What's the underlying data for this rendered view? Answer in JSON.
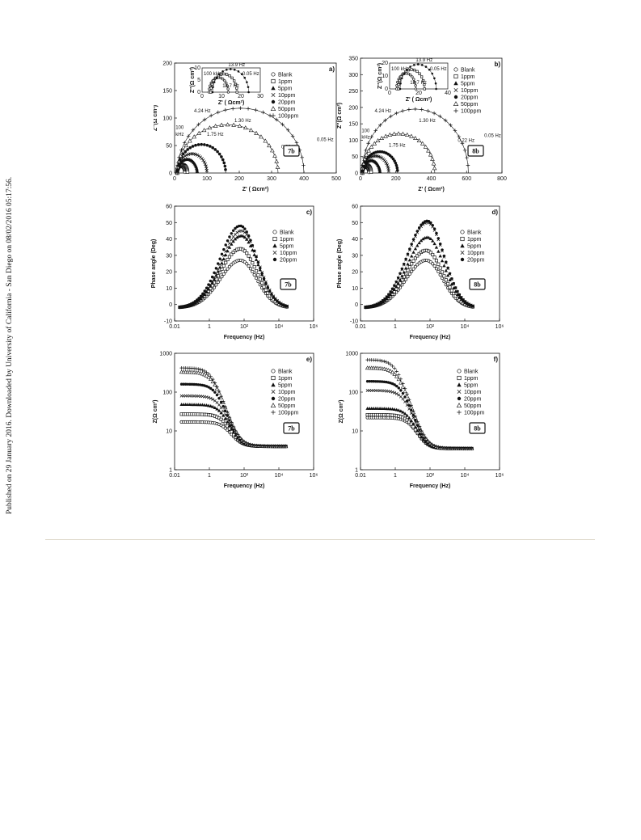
{
  "side_note": "Published on 29 January 2016. Downloaded by University of California - San Diego on 08/02/2016 05:17:56.",
  "chart_data": [
    {
      "id": "a",
      "type": "scatter",
      "label": "a)",
      "tag": "7b",
      "xlabel": "Z' ( Ωcm²)",
      "ylabel": "Z''(Ω cm²)",
      "xlim": [
        0,
        500
      ],
      "ylim": [
        0,
        200
      ],
      "xticks": [
        0,
        100,
        200,
        300,
        400,
        500
      ],
      "yticks": [
        0,
        50,
        100,
        150,
        200
      ],
      "tick_labels_x": [
        "0",
        "100",
        "200",
        "300",
        "400",
        "500"
      ],
      "tick_labels_y": [
        "0",
        "50",
        "100",
        "150",
        "200"
      ],
      "legend": [
        "Blank",
        "1ppm",
        "5ppm",
        "10ppm",
        "20ppm",
        "50ppm",
        "100ppm"
      ],
      "series": [
        {
          "name": "Blank",
          "marker": "circle-open",
          "arc": {
            "r0": 8,
            "r1": 32,
            "hmax": 12
          }
        },
        {
          "name": "1ppm",
          "marker": "square-open",
          "arc": {
            "r0": 8,
            "r1": 40,
            "hmax": 15
          }
        },
        {
          "name": "5ppm",
          "marker": "triangle-filled",
          "arc": {
            "r0": 8,
            "r1": 70,
            "hmax": 25
          }
        },
        {
          "name": "10ppm",
          "marker": "x",
          "arc": {
            "r0": 8,
            "r1": 100,
            "hmax": 35
          }
        },
        {
          "name": "20ppm",
          "marker": "circle-filled",
          "arc": {
            "r0": 8,
            "r1": 158,
            "hmax": 52
          }
        },
        {
          "name": "50ppm",
          "marker": "triangle-open",
          "arc": {
            "r0": 8,
            "r1": 320,
            "hmax": 88
          }
        },
        {
          "name": "100ppm",
          "marker": "plus",
          "arc": {
            "r0": 8,
            "r1": 400,
            "hmax": 118
          }
        }
      ],
      "annotations": [
        {
          "text": "4.24 Hz",
          "x": 60,
          "y": 110
        },
        {
          "text": "100",
          "x": 3,
          "y": 80
        },
        {
          "text": "kHz",
          "x": 3,
          "y": 68
        },
        {
          "text": "1.75 Hz",
          "x": 100,
          "y": 68
        },
        {
          "text": "1.30 Hz",
          "x": 185,
          "y": 93
        },
        {
          "text": "0.22 Hz",
          "x": 330,
          "y": 45
        },
        {
          "text": "0.05 Hz",
          "x": 440,
          "y": 58
        }
      ],
      "inset": {
        "xlim": [
          0,
          30
        ],
        "ylim": [
          0,
          10
        ],
        "xticks": [
          0,
          10,
          20,
          30
        ],
        "yticks": [
          0,
          5,
          10
        ],
        "xlabel": "Z' ( Ωcm²)",
        "ylabel": "Z''(Ω cm²)",
        "annotations": [
          "13.9 Hz",
          "100 kHz",
          "0.05 Hz",
          "18.7 Hz"
        ]
      }
    },
    {
      "id": "b",
      "type": "scatter",
      "label": "b)",
      "tag": "8b",
      "xlabel": "Z' ( Ωcm²)",
      "ylabel": "Z''(Ω cm²)",
      "xlim": [
        0,
        800
      ],
      "ylim": [
        0,
        350
      ],
      "xticks": [
        0,
        200,
        400,
        600,
        800
      ],
      "yticks": [
        0,
        50,
        100,
        150,
        200,
        250,
        300,
        350
      ],
      "tick_labels_x": [
        "0",
        "200",
        "400",
        "600",
        "800"
      ],
      "tick_labels_y": [
        "0",
        "50",
        "100",
        "150",
        "200",
        "250",
        "300",
        "350"
      ],
      "legend": [
        "Blank",
        "1ppm",
        "5ppm",
        "10ppm",
        "20ppm",
        "50ppm",
        "100ppm"
      ],
      "series": [
        {
          "name": "Blank",
          "marker": "circle-open",
          "arc": {
            "r0": 10,
            "r1": 48,
            "hmax": 18
          }
        },
        {
          "name": "1ppm",
          "marker": "square-open",
          "arc": {
            "r0": 10,
            "r1": 60,
            "hmax": 24
          }
        },
        {
          "name": "5ppm",
          "marker": "triangle-filled",
          "arc": {
            "r0": 10,
            "r1": 110,
            "hmax": 38
          }
        },
        {
          "name": "10ppm",
          "marker": "x",
          "arc": {
            "r0": 10,
            "r1": 160,
            "hmax": 52
          }
        },
        {
          "name": "20ppm",
          "marker": "circle-filled",
          "arc": {
            "r0": 10,
            "r1": 210,
            "hmax": 65
          }
        },
        {
          "name": "50ppm",
          "marker": "triangle-open",
          "arc": {
            "r0": 10,
            "r1": 420,
            "hmax": 120
          }
        },
        {
          "name": "100ppm",
          "marker": "plus",
          "arc": {
            "r0": 10,
            "r1": 610,
            "hmax": 195
          }
        }
      ],
      "annotations": [
        {
          "text": "4.24 Hz",
          "x": 80,
          "y": 185
        },
        {
          "text": "100",
          "x": 6,
          "y": 125
        },
        {
          "text": "kHz",
          "x": 6,
          "y": 105
        },
        {
          "text": "1.75 Hz",
          "x": 160,
          "y": 80
        },
        {
          "text": "1.30 Hz",
          "x": 330,
          "y": 155
        },
        {
          "text": "0.22 Hz",
          "x": 550,
          "y": 95
        },
        {
          "text": "0.05 Hz",
          "x": 700,
          "y": 110
        }
      ],
      "inset": {
        "xlim": [
          0,
          40
        ],
        "ylim": [
          0,
          20
        ],
        "xticks": [
          0,
          20,
          40
        ],
        "yticks": [
          0,
          10,
          20
        ],
        "xlabel": "Z' ( Ωcm²)",
        "ylabel": "Z''(Ω cm²)",
        "annotations": [
          "13.9 Hz",
          "100 kHz",
          "0.05 Hz",
          "18.7 Hz"
        ]
      }
    },
    {
      "id": "c",
      "type": "scatter",
      "label": "c)",
      "tag": "7b",
      "xlabel": "Frequency (Hz)",
      "ylabel": "Phase angle (Deg)",
      "xscale": "log",
      "xlim": [
        0.01,
        1000000
      ],
      "ylim": [
        -10,
        60
      ],
      "xticks": [
        0.01,
        1,
        100,
        10000,
        1000000
      ],
      "yticks": [
        -10,
        0,
        10,
        20,
        30,
        40,
        50,
        60
      ],
      "tick_labels_x": [
        "0.01",
        "1",
        "10²",
        "10⁴",
        "10⁶"
      ],
      "tick_labels_y": [
        "-10",
        "0",
        "10",
        "20",
        "30",
        "40",
        "50",
        "60"
      ],
      "legend": [
        "Blank",
        "1ppm",
        "5ppm",
        "10ppm",
        "20ppm"
      ],
      "series": [
        {
          "name": "Blank",
          "marker": "circle-open",
          "peak": 29,
          "fpeak": 60
        },
        {
          "name": "1ppm",
          "marker": "square-open",
          "peak": 36,
          "fpeak": 60
        },
        {
          "name": "5ppm",
          "marker": "triangle-filled",
          "peak": 44,
          "fpeak": 70
        },
        {
          "name": "10ppm",
          "marker": "x",
          "peak": 47,
          "fpeak": 70
        },
        {
          "name": "20ppm",
          "marker": "circle-filled",
          "peak": 50,
          "fpeak": 60
        }
      ]
    },
    {
      "id": "d",
      "type": "scatter",
      "label": "d)",
      "tag": "8b",
      "xlabel": "Frequency (Hz)",
      "ylabel": "Phase angle (Deg)",
      "xscale": "log",
      "xlim": [
        0.01,
        1000000
      ],
      "ylim": [
        -10,
        60
      ],
      "xticks": [
        0.01,
        1,
        100,
        10000,
        1000000
      ],
      "yticks": [
        -10,
        0,
        10,
        20,
        30,
        40,
        50,
        60
      ],
      "tick_labels_x": [
        "0.01",
        "1",
        "10²",
        "10⁴",
        "10⁶"
      ],
      "tick_labels_y": [
        "-10",
        "0",
        "10",
        "20",
        "30",
        "40",
        "50",
        "60"
      ],
      "legend": [
        "Blank",
        "1ppm",
        "5ppm",
        "10ppm",
        "20ppm"
      ],
      "series": [
        {
          "name": "Blank",
          "marker": "circle-open",
          "peak": 29,
          "fpeak": 60
        },
        {
          "name": "1ppm",
          "marker": "square-open",
          "peak": 35,
          "fpeak": 60
        },
        {
          "name": "5ppm",
          "marker": "triangle-filled",
          "peak": 43,
          "fpeak": 70
        },
        {
          "name": "10ppm",
          "marker": "x",
          "peak": 52,
          "fpeak": 70
        },
        {
          "name": "20ppm",
          "marker": "circle-filled",
          "peak": 53,
          "fpeak": 70
        }
      ]
    },
    {
      "id": "e",
      "type": "scatter",
      "label": "e)",
      "tag": "7b",
      "xlabel": "Frequency (Hz)",
      "ylabel": "Z(Ω cm²)",
      "xscale": "log",
      "yscale": "log",
      "xlim": [
        0.01,
        1000000
      ],
      "ylim": [
        1,
        1000
      ],
      "xticks": [
        0.01,
        1,
        100,
        10000,
        1000000
      ],
      "yticks": [
        1,
        10,
        100,
        1000
      ],
      "tick_labels_x": [
        "0.01",
        "1",
        "10²",
        "10⁴",
        "10⁶"
      ],
      "tick_labels_y": [
        "1",
        "10",
        "100",
        "1000"
      ],
      "legend": [
        "Blank",
        "1ppm",
        "5ppm",
        "10ppm",
        "20ppm",
        "50ppm",
        "100ppm"
      ],
      "series": [
        {
          "name": "Blank",
          "marker": "circle-open",
          "zlow": 17,
          "zhigh": 4
        },
        {
          "name": "1ppm",
          "marker": "square-open",
          "zlow": 27,
          "zhigh": 4
        },
        {
          "name": "5ppm",
          "marker": "triangle-filled",
          "zlow": 48,
          "zhigh": 4
        },
        {
          "name": "10ppm",
          "marker": "x",
          "zlow": 80,
          "zhigh": 4
        },
        {
          "name": "20ppm",
          "marker": "circle-filled",
          "zlow": 160,
          "zhigh": 4
        },
        {
          "name": "50ppm",
          "marker": "triangle-open",
          "zlow": 330,
          "zhigh": 4
        },
        {
          "name": "100ppm",
          "marker": "plus",
          "zlow": 420,
          "zhigh": 4
        }
      ]
    },
    {
      "id": "f",
      "type": "scatter",
      "label": "f)",
      "tag": "8b",
      "xlabel": "Frequency (Hz)",
      "ylabel": "Z(Ω cm²)",
      "xscale": "log",
      "yscale": "log",
      "xlim": [
        0.01,
        1000000
      ],
      "ylim": [
        1,
        1000
      ],
      "xticks": [
        0.01,
        1,
        100,
        10000,
        1000000
      ],
      "yticks": [
        1,
        10,
        100,
        1000
      ],
      "tick_labels_x": [
        "0.01",
        "1",
        "10²",
        "10⁴",
        "10⁶"
      ],
      "tick_labels_y": [
        "1",
        "10",
        "100",
        "1000"
      ],
      "legend": [
        "Blank",
        "1ppm",
        "5ppm",
        "10ppm",
        "20ppm",
        "50ppm",
        "100ppm"
      ],
      "series": [
        {
          "name": "Blank",
          "marker": "circle-open",
          "zlow": 22,
          "zhigh": 3.5
        },
        {
          "name": "1ppm",
          "marker": "square-open",
          "zlow": 26,
          "zhigh": 3.5
        },
        {
          "name": "5ppm",
          "marker": "triangle-filled",
          "zlow": 38,
          "zhigh": 3.5
        },
        {
          "name": "10ppm",
          "marker": "x",
          "zlow": 110,
          "zhigh": 3.5
        },
        {
          "name": "20ppm",
          "marker": "circle-filled",
          "zlow": 190,
          "zhigh": 3.5
        },
        {
          "name": "50ppm",
          "marker": "triangle-open",
          "zlow": 420,
          "zhigh": 3.5
        },
        {
          "name": "100ppm",
          "marker": "plus",
          "zlow": 680,
          "zhigh": 3.5
        }
      ]
    }
  ]
}
